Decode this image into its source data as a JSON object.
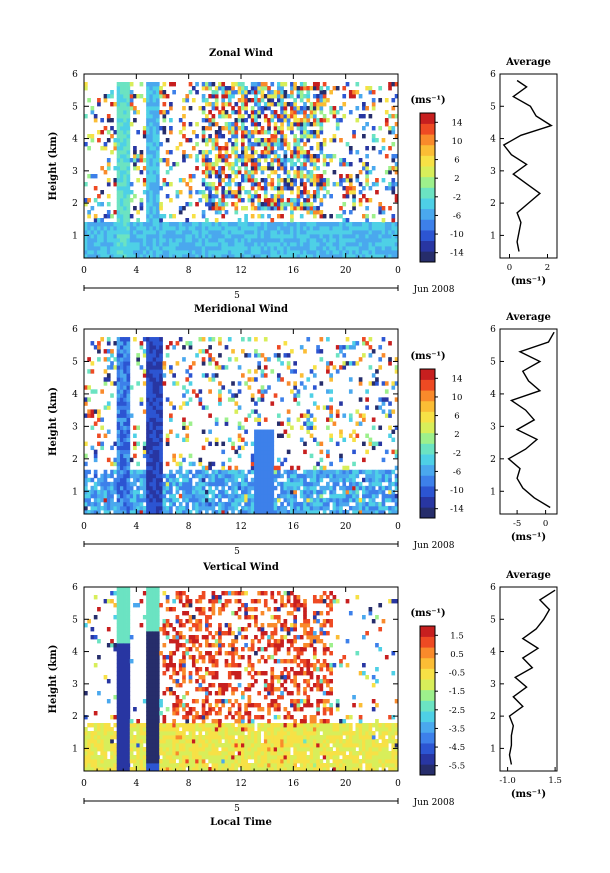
{
  "chart_data": [
    {
      "type": "heatmap",
      "title": "Zonal Wind",
      "xlabel": "",
      "ylabel": "Height (km)",
      "xlim": [
        0,
        24
      ],
      "ylim": [
        0.3,
        6
      ],
      "xticks": [
        "0",
        "4",
        "8",
        "12",
        "16",
        "20",
        "0"
      ],
      "yticks": [
        "1",
        "2",
        "3",
        "4",
        "5",
        "6"
      ],
      "day_axis": {
        "label": "5",
        "date": "Jun 2008"
      },
      "colorbar": {
        "unit": "(ms⁻¹)",
        "ticks": [
          "14",
          "10",
          "6",
          "2",
          "-2",
          "-6",
          "-10",
          "-14"
        ],
        "range": [
          -16,
          16
        ]
      },
      "profile": {
        "title": "Average",
        "xlabel": "(ms⁻¹)",
        "xticks": [
          "0",
          "2"
        ],
        "xlim": [
          -0.5,
          2.5
        ],
        "heights": [
          0.5,
          0.8,
          1.1,
          1.4,
          1.7,
          2.0,
          2.3,
          2.6,
          2.9,
          3.2,
          3.5,
          3.8,
          4.1,
          4.4,
          4.7,
          5.0,
          5.3,
          5.6,
          5.8
        ],
        "values": [
          0.5,
          0.4,
          0.5,
          0.6,
          0.4,
          1.0,
          1.6,
          0.9,
          0.2,
          0.9,
          0.1,
          -0.3,
          0.6,
          2.2,
          1.4,
          1.1,
          0.2,
          0.9,
          0.4
        ]
      }
    },
    {
      "type": "heatmap",
      "title": "Meridional Wind",
      "xlabel": "",
      "ylabel": "Height (km)",
      "xlim": [
        0,
        24
      ],
      "ylim": [
        0.3,
        6
      ],
      "xticks": [
        "0",
        "4",
        "8",
        "12",
        "16",
        "20",
        "0"
      ],
      "yticks": [
        "1",
        "2",
        "3",
        "4",
        "5",
        "6"
      ],
      "day_axis": {
        "label": "5",
        "date": "Jun 2008"
      },
      "colorbar": {
        "unit": "(ms⁻¹)",
        "ticks": [
          "14",
          "10",
          "6",
          "2",
          "-2",
          "-6",
          "-10",
          "-14"
        ],
        "range": [
          -16,
          16
        ]
      },
      "profile": {
        "title": "Average",
        "xlabel": "(ms⁻¹)",
        "xticks": [
          "-5",
          "0"
        ],
        "xlim": [
          -8,
          2
        ],
        "heights": [
          0.5,
          0.8,
          1.1,
          1.4,
          1.7,
          2.0,
          2.3,
          2.6,
          2.9,
          3.2,
          3.5,
          3.8,
          4.1,
          4.4,
          4.7,
          5.0,
          5.3,
          5.6,
          5.9
        ],
        "values": [
          0.8,
          -2.0,
          -4.0,
          -5.0,
          -4.5,
          -6.5,
          -3.5,
          -1.5,
          -5.0,
          -2.0,
          -3.5,
          -6.0,
          -1.0,
          -3.0,
          -4.0,
          -1.0,
          -4.5,
          0.5,
          1.5
        ]
      }
    },
    {
      "type": "heatmap",
      "title": "Vertical Wind",
      "xlabel": "Local Time",
      "ylabel": "Height (km)",
      "xlim": [
        0,
        24
      ],
      "ylim": [
        0.3,
        6
      ],
      "xticks": [
        "0",
        "4",
        "8",
        "12",
        "16",
        "20",
        "0"
      ],
      "yticks": [
        "1",
        "2",
        "3",
        "4",
        "5",
        "6"
      ],
      "day_axis": {
        "label": "5",
        "date": "Jun 2008"
      },
      "colorbar": {
        "unit": "(ms⁻¹)",
        "ticks": [
          "1.5",
          "0.5",
          "-0.5",
          "-1.5",
          "-2.5",
          "-3.5",
          "-4.5",
          "-5.5"
        ],
        "range": [
          -6.0,
          2.0
        ]
      },
      "profile": {
        "title": "Average",
        "xlabel": "(ms⁻¹)",
        "xticks": [
          "-1.0",
          "1.5"
        ],
        "xlim": [
          -1.4,
          1.6
        ],
        "heights": [
          0.5,
          0.8,
          1.1,
          1.4,
          1.7,
          2.0,
          2.3,
          2.6,
          2.9,
          3.2,
          3.5,
          3.8,
          4.1,
          4.4,
          4.7,
          5.0,
          5.3,
          5.6,
          5.9
        ],
        "values": [
          -0.8,
          -0.9,
          -0.8,
          -0.8,
          -0.7,
          -0.9,
          -0.2,
          -0.7,
          0.0,
          -0.6,
          0.3,
          -0.2,
          0.6,
          -0.2,
          0.5,
          0.9,
          1.2,
          0.7,
          1.5
        ]
      }
    }
  ],
  "colors": {
    "colormap": [
      "#262d6b",
      "#2836a2",
      "#2c55d2",
      "#3d80ea",
      "#4aa8ee",
      "#4ed0e6",
      "#6be3c2",
      "#9df08c",
      "#d8ee5a",
      "#f7e146",
      "#fbbd35",
      "#f98a2b",
      "#ee4a23",
      "#c71f1f"
    ]
  }
}
